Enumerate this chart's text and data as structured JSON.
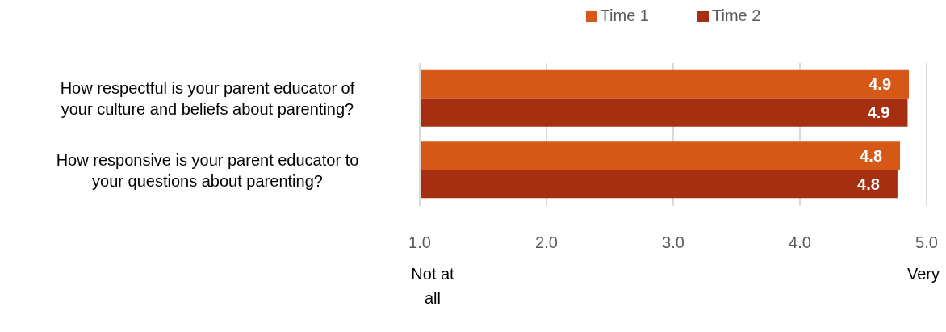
{
  "chart_data": {
    "type": "bar",
    "orientation": "horizontal",
    "categories": [
      "How respectful is your parent educator of your culture and beliefs about parenting?",
      "How responsive is your parent educator to your questions about parenting?"
    ],
    "series": [
      {
        "name": "Time 1",
        "color": "#d55817",
        "values": [
          4.86,
          4.79
        ],
        "value_labels": [
          "4.9",
          "4.8"
        ]
      },
      {
        "name": "Time 2",
        "color": "#a52f10",
        "values": [
          4.85,
          4.77
        ],
        "value_labels": [
          "4.9",
          "4.8"
        ]
      }
    ],
    "xlim": [
      1,
      5
    ],
    "xticks": [
      {
        "value": 1,
        "label": "1.0"
      },
      {
        "value": 2,
        "label": "2.0"
      },
      {
        "value": 3,
        "label": "3.0"
      },
      {
        "value": 4,
        "label": "4.0"
      },
      {
        "value": 5,
        "label": "5.0"
      }
    ],
    "grid": "x",
    "legend": "top",
    "annotations": [
      "Not at all",
      "Very"
    ]
  }
}
